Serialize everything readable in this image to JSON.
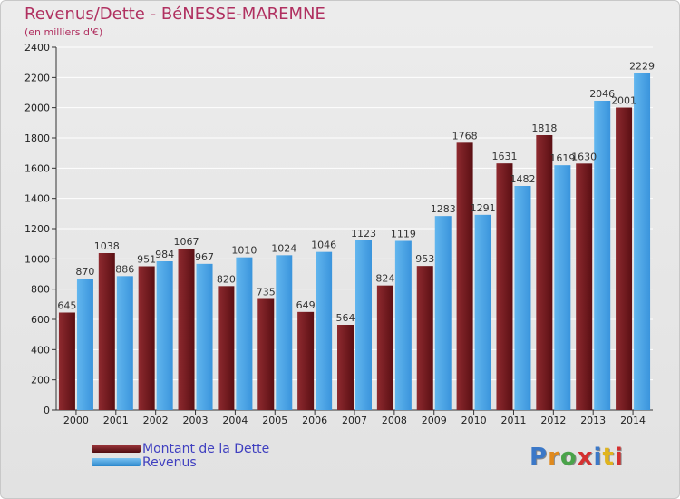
{
  "title": "Revenus/Dette - BéNESSE-MAREMNE",
  "subtitle": "(en milliers d'€)",
  "legend": {
    "debt_label": "Montant de la Dette",
    "revenue_label": "Revenus"
  },
  "logo": "Proxiti",
  "colors": {
    "debt": "#7a1f24",
    "revenue": "#4ea8e8",
    "title": "#b03060",
    "legend_text": "#4040c0"
  },
  "chart_data": {
    "type": "bar",
    "title": "Revenus/Dette - BéNESSE-MAREMNE",
    "subtitle": "(en milliers d'€)",
    "categories": [
      "2000",
      "2001",
      "2002",
      "2003",
      "2004",
      "2005",
      "2006",
      "2007",
      "2008",
      "2009",
      "2010",
      "2011",
      "2012",
      "2013",
      "2014"
    ],
    "series": [
      {
        "name": "Montant de la Dette",
        "values": [
          645,
          1038,
          951,
          1067,
          820,
          735,
          649,
          564,
          824,
          953,
          1768,
          1631,
          1818,
          1630,
          2001
        ]
      },
      {
        "name": "Revenus",
        "values": [
          870,
          886,
          984,
          967,
          1010,
          1024,
          1046,
          1123,
          1119,
          1283,
          1291,
          1482,
          1619,
          2046,
          2229
        ]
      }
    ],
    "data_labels": {
      "debt": [
        "645",
        "1038",
        "951",
        "1067",
        "820",
        "735",
        "649",
        "564",
        "824",
        "953",
        "1768",
        "1631",
        "1818",
        "1630",
        "2001"
      ],
      "revenue": [
        "870",
        "886",
        "984",
        "967",
        "1010",
        "1024",
        "1046",
        "1123",
        "1119",
        "1283",
        "1291",
        "1482",
        "1619",
        "2046",
        "2229"
      ]
    },
    "yticks": [
      "0",
      "200",
      "400",
      "600",
      "800",
      "1000",
      "1200",
      "1400",
      "1600",
      "1800",
      "2000",
      "2200",
      "2400"
    ],
    "ylim": [
      0,
      2400
    ],
    "grid": true,
    "legend_position": "bottom-left"
  }
}
